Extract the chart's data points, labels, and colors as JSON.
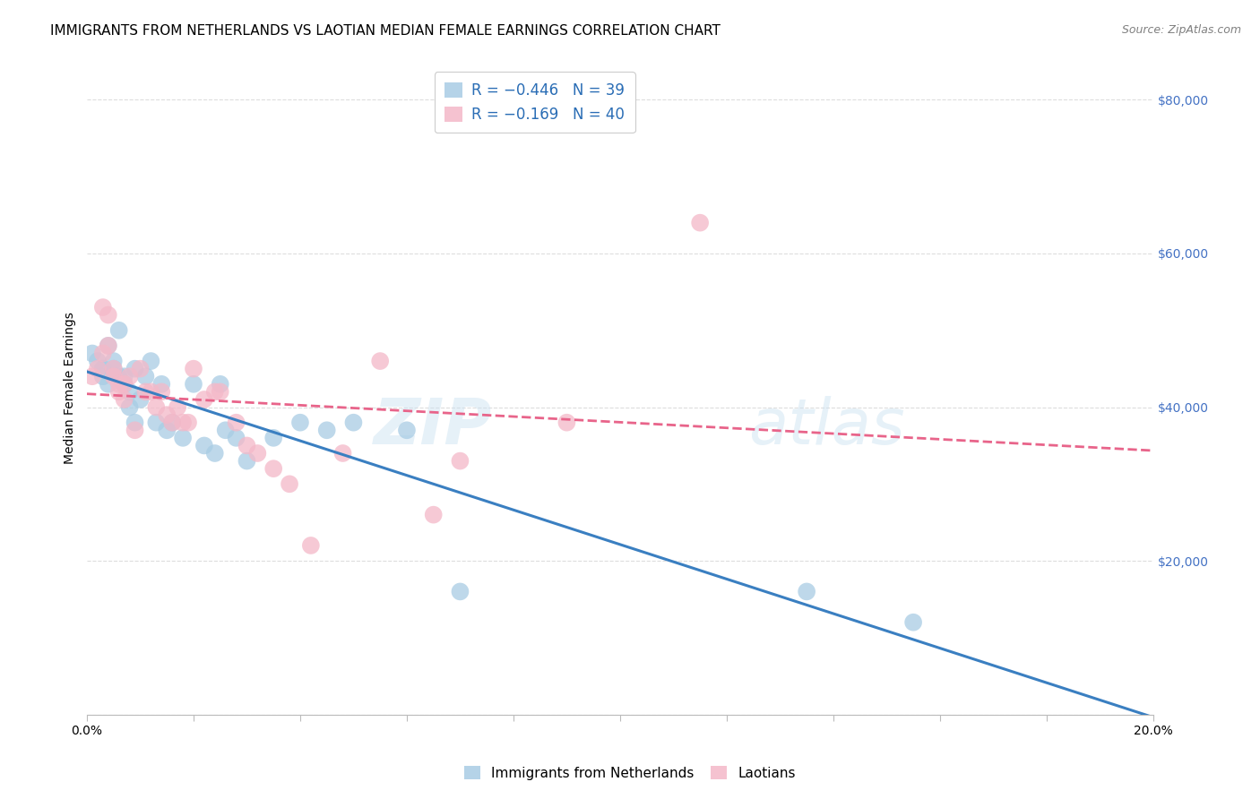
{
  "title": "IMMIGRANTS FROM NETHERLANDS VS LAOTIAN MEDIAN FEMALE EARNINGS CORRELATION CHART",
  "source": "Source: ZipAtlas.com",
  "ylabel": "Median Female Earnings",
  "yticks": [
    0,
    20000,
    40000,
    60000,
    80000
  ],
  "ytick_labels": [
    "",
    "$20,000",
    "$40,000",
    "$60,000",
    "$80,000"
  ],
  "xmin": 0.0,
  "xmax": 0.2,
  "ymin": 0,
  "ymax": 85000,
  "legend_r_blue": "R = −0.446",
  "legend_n_blue": "N = 39",
  "legend_r_pink": "R = −0.169",
  "legend_n_pink": "N = 40",
  "watermark_zip": "ZIP",
  "watermark_atlas": "atlas",
  "legend_label_blue": "Immigrants from Netherlands",
  "legend_label_pink": "Laotians",
  "blue_color": "#a8cce4",
  "pink_color": "#f4b8c8",
  "blue_line_color": "#3a7fc1",
  "pink_line_color": "#e8648a",
  "blue_x": [
    0.001,
    0.002,
    0.003,
    0.003,
    0.004,
    0.004,
    0.005,
    0.005,
    0.006,
    0.006,
    0.007,
    0.007,
    0.008,
    0.008,
    0.009,
    0.009,
    0.01,
    0.011,
    0.012,
    0.013,
    0.014,
    0.015,
    0.016,
    0.018,
    0.02,
    0.022,
    0.024,
    0.025,
    0.026,
    0.028,
    0.03,
    0.035,
    0.04,
    0.045,
    0.05,
    0.06,
    0.07,
    0.135,
    0.155
  ],
  "blue_y": [
    47000,
    46000,
    45000,
    44000,
    48000,
    43000,
    46000,
    45000,
    50000,
    44000,
    44000,
    43000,
    42000,
    40000,
    45000,
    38000,
    41000,
    44000,
    46000,
    38000,
    43000,
    37000,
    38000,
    36000,
    43000,
    35000,
    34000,
    43000,
    37000,
    36000,
    33000,
    36000,
    38000,
    37000,
    38000,
    37000,
    16000,
    16000,
    12000
  ],
  "pink_x": [
    0.001,
    0.002,
    0.003,
    0.003,
    0.004,
    0.004,
    0.005,
    0.005,
    0.006,
    0.006,
    0.007,
    0.007,
    0.008,
    0.009,
    0.01,
    0.011,
    0.012,
    0.013,
    0.014,
    0.015,
    0.016,
    0.017,
    0.018,
    0.019,
    0.02,
    0.022,
    0.024,
    0.025,
    0.028,
    0.03,
    0.032,
    0.035,
    0.038,
    0.042,
    0.048,
    0.055,
    0.065,
    0.07,
    0.09,
    0.115
  ],
  "pink_y": [
    44000,
    45000,
    47000,
    53000,
    52000,
    48000,
    45000,
    44000,
    43000,
    42000,
    43000,
    41000,
    44000,
    37000,
    45000,
    42000,
    42000,
    40000,
    42000,
    39000,
    38000,
    40000,
    38000,
    38000,
    45000,
    41000,
    42000,
    42000,
    38000,
    35000,
    34000,
    32000,
    30000,
    22000,
    34000,
    46000,
    26000,
    33000,
    38000,
    64000
  ],
  "grid_color": "#dddddd",
  "background_color": "#ffffff",
  "title_fontsize": 11,
  "axis_label_fontsize": 10,
  "tick_label_fontsize": 10,
  "watermark_fontsize": 52,
  "watermark_color": "#c8e0f0",
  "watermark_alpha": 0.45,
  "scatter_size": 200
}
